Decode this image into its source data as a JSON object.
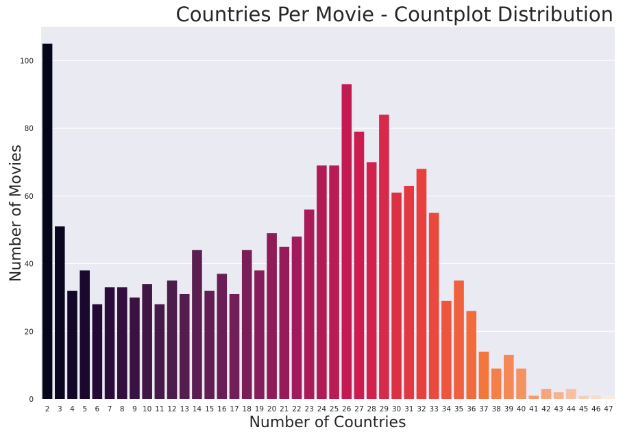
{
  "chart_data": {
    "type": "bar",
    "title": "Countries Per Movie - Countplot Distribution",
    "xlabel": "Number of Countries",
    "ylabel": "Number of Movies",
    "categories": [
      "2",
      "3",
      "4",
      "5",
      "6",
      "7",
      "8",
      "9",
      "10",
      "11",
      "12",
      "13",
      "14",
      "15",
      "16",
      "17",
      "18",
      "19",
      "20",
      "21",
      "22",
      "23",
      "24",
      "25",
      "26",
      "27",
      "28",
      "29",
      "30",
      "31",
      "32",
      "33",
      "34",
      "35",
      "36",
      "37",
      "38",
      "39",
      "40",
      "41",
      "42",
      "43",
      "44",
      "45",
      "46",
      "47"
    ],
    "values": [
      105,
      51,
      32,
      38,
      28,
      33,
      33,
      30,
      34,
      28,
      35,
      31,
      44,
      32,
      37,
      31,
      44,
      38,
      49,
      45,
      48,
      56,
      69,
      69,
      93,
      79,
      70,
      84,
      61,
      63,
      68,
      55,
      29,
      35,
      26,
      14,
      9,
      13,
      9,
      1,
      3,
      2,
      3,
      1,
      1,
      1
    ],
    "yticks": [
      0,
      20,
      40,
      60,
      80,
      100
    ],
    "ylim": [
      0,
      110
    ],
    "grid": "y",
    "palette": "rocket",
    "colors": {
      "background": "#EAEAF2",
      "grid": "#ffffff",
      "start": "#03051A",
      "end": "#FAEBDD"
    }
  }
}
